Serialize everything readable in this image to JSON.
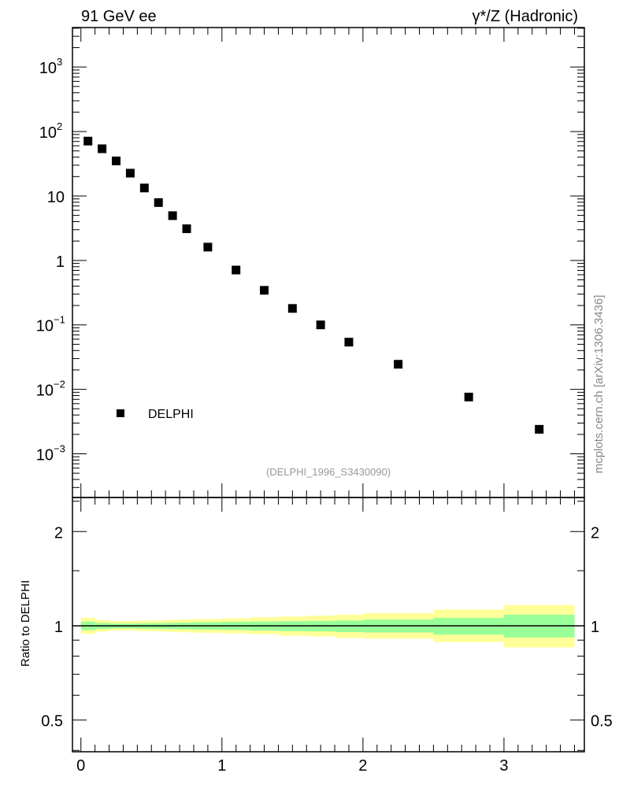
{
  "chart_data": [
    {
      "type": "scatter",
      "title_left": "91 GeV ee",
      "title_right": "γ*/Z (Hadronic)",
      "xlabel": "",
      "ylabel": "",
      "yscale": "log",
      "xlim": [
        -0.06,
        3.57
      ],
      "ylim": [
        0.00021,
        4100
      ],
      "yticks": [
        {
          "value": 1000,
          "label": "10",
          "exp": "3"
        },
        {
          "value": 100,
          "label": "10",
          "exp": "2"
        },
        {
          "value": 10,
          "label": "10",
          "exp": ""
        },
        {
          "value": 1,
          "label": "1",
          "exp": ""
        },
        {
          "value": 0.1,
          "label": "10",
          "exp": "−1"
        },
        {
          "value": 0.01,
          "label": "10",
          "exp": "−2"
        },
        {
          "value": 0.001,
          "label": "10",
          "exp": "−3"
        }
      ],
      "series": [
        {
          "name": "DELPHI",
          "color": "#000000",
          "x": [
            0.05,
            0.15,
            0.25,
            0.35,
            0.45,
            0.55,
            0.65,
            0.75,
            0.9,
            1.1,
            1.3,
            1.5,
            1.7,
            1.9,
            2.25,
            2.75,
            3.25
          ],
          "y": [
            71,
            54,
            35,
            22.6,
            13.3,
            7.9,
            4.95,
            3.1,
            1.61,
            0.71,
            0.344,
            0.18,
            0.1,
            0.054,
            0.0245,
            0.0076,
            0.0024
          ]
        }
      ],
      "legend": {
        "placement": "bottom-left",
        "entries": [
          "DELPHI"
        ]
      },
      "annotation": "(DELPHI_1996_S3430090)",
      "side_label": "mcplots.cern.ch [arXiv:1306.3436]"
    },
    {
      "type": "area",
      "ylabel": "Ratio to DELPHI",
      "yscale": "log",
      "xlim": [
        -0.06,
        3.57
      ],
      "ylim": [
        0.396,
        2.57
      ],
      "xticks": [
        0,
        1,
        2,
        3
      ],
      "yticks": [
        {
          "value": 2,
          "label": "2"
        },
        {
          "value": 1,
          "label": "1"
        },
        {
          "value": 0.5,
          "label": "0.5"
        }
      ],
      "bin_edges": [
        0,
        0.1,
        0.2,
        0.3,
        0.4,
        0.5,
        0.6,
        0.7,
        0.8,
        1.0,
        1.2,
        1.4,
        1.6,
        1.8,
        2.0,
        2.5,
        3.0,
        3.5
      ],
      "yellow_band": {
        "color": "#ffff99",
        "upper": [
          1.061,
          1.043,
          1.035,
          1.035,
          1.038,
          1.04,
          1.044,
          1.048,
          1.052,
          1.056,
          1.065,
          1.071,
          1.078,
          1.085,
          1.098,
          1.127,
          1.165
        ],
        "lower": [
          0.942,
          0.958,
          0.966,
          0.966,
          0.962,
          0.96,
          0.957,
          0.953,
          0.95,
          0.946,
          0.94,
          0.93,
          0.925,
          0.915,
          0.91,
          0.887,
          0.853
        ]
      },
      "green_band": {
        "color": "#99ff99",
        "upper": [
          1.031,
          1.021,
          1.017,
          1.017,
          1.019,
          1.02,
          1.022,
          1.024,
          1.027,
          1.03,
          1.032,
          1.035,
          1.037,
          1.04,
          1.047,
          1.06,
          1.085
        ],
        "lower": [
          0.969,
          0.977,
          0.981,
          0.981,
          0.979,
          0.978,
          0.976,
          0.974,
          0.972,
          0.97,
          0.966,
          0.962,
          0.96,
          0.955,
          0.952,
          0.937,
          0.918
        ]
      },
      "reference_line": 1
    }
  ]
}
